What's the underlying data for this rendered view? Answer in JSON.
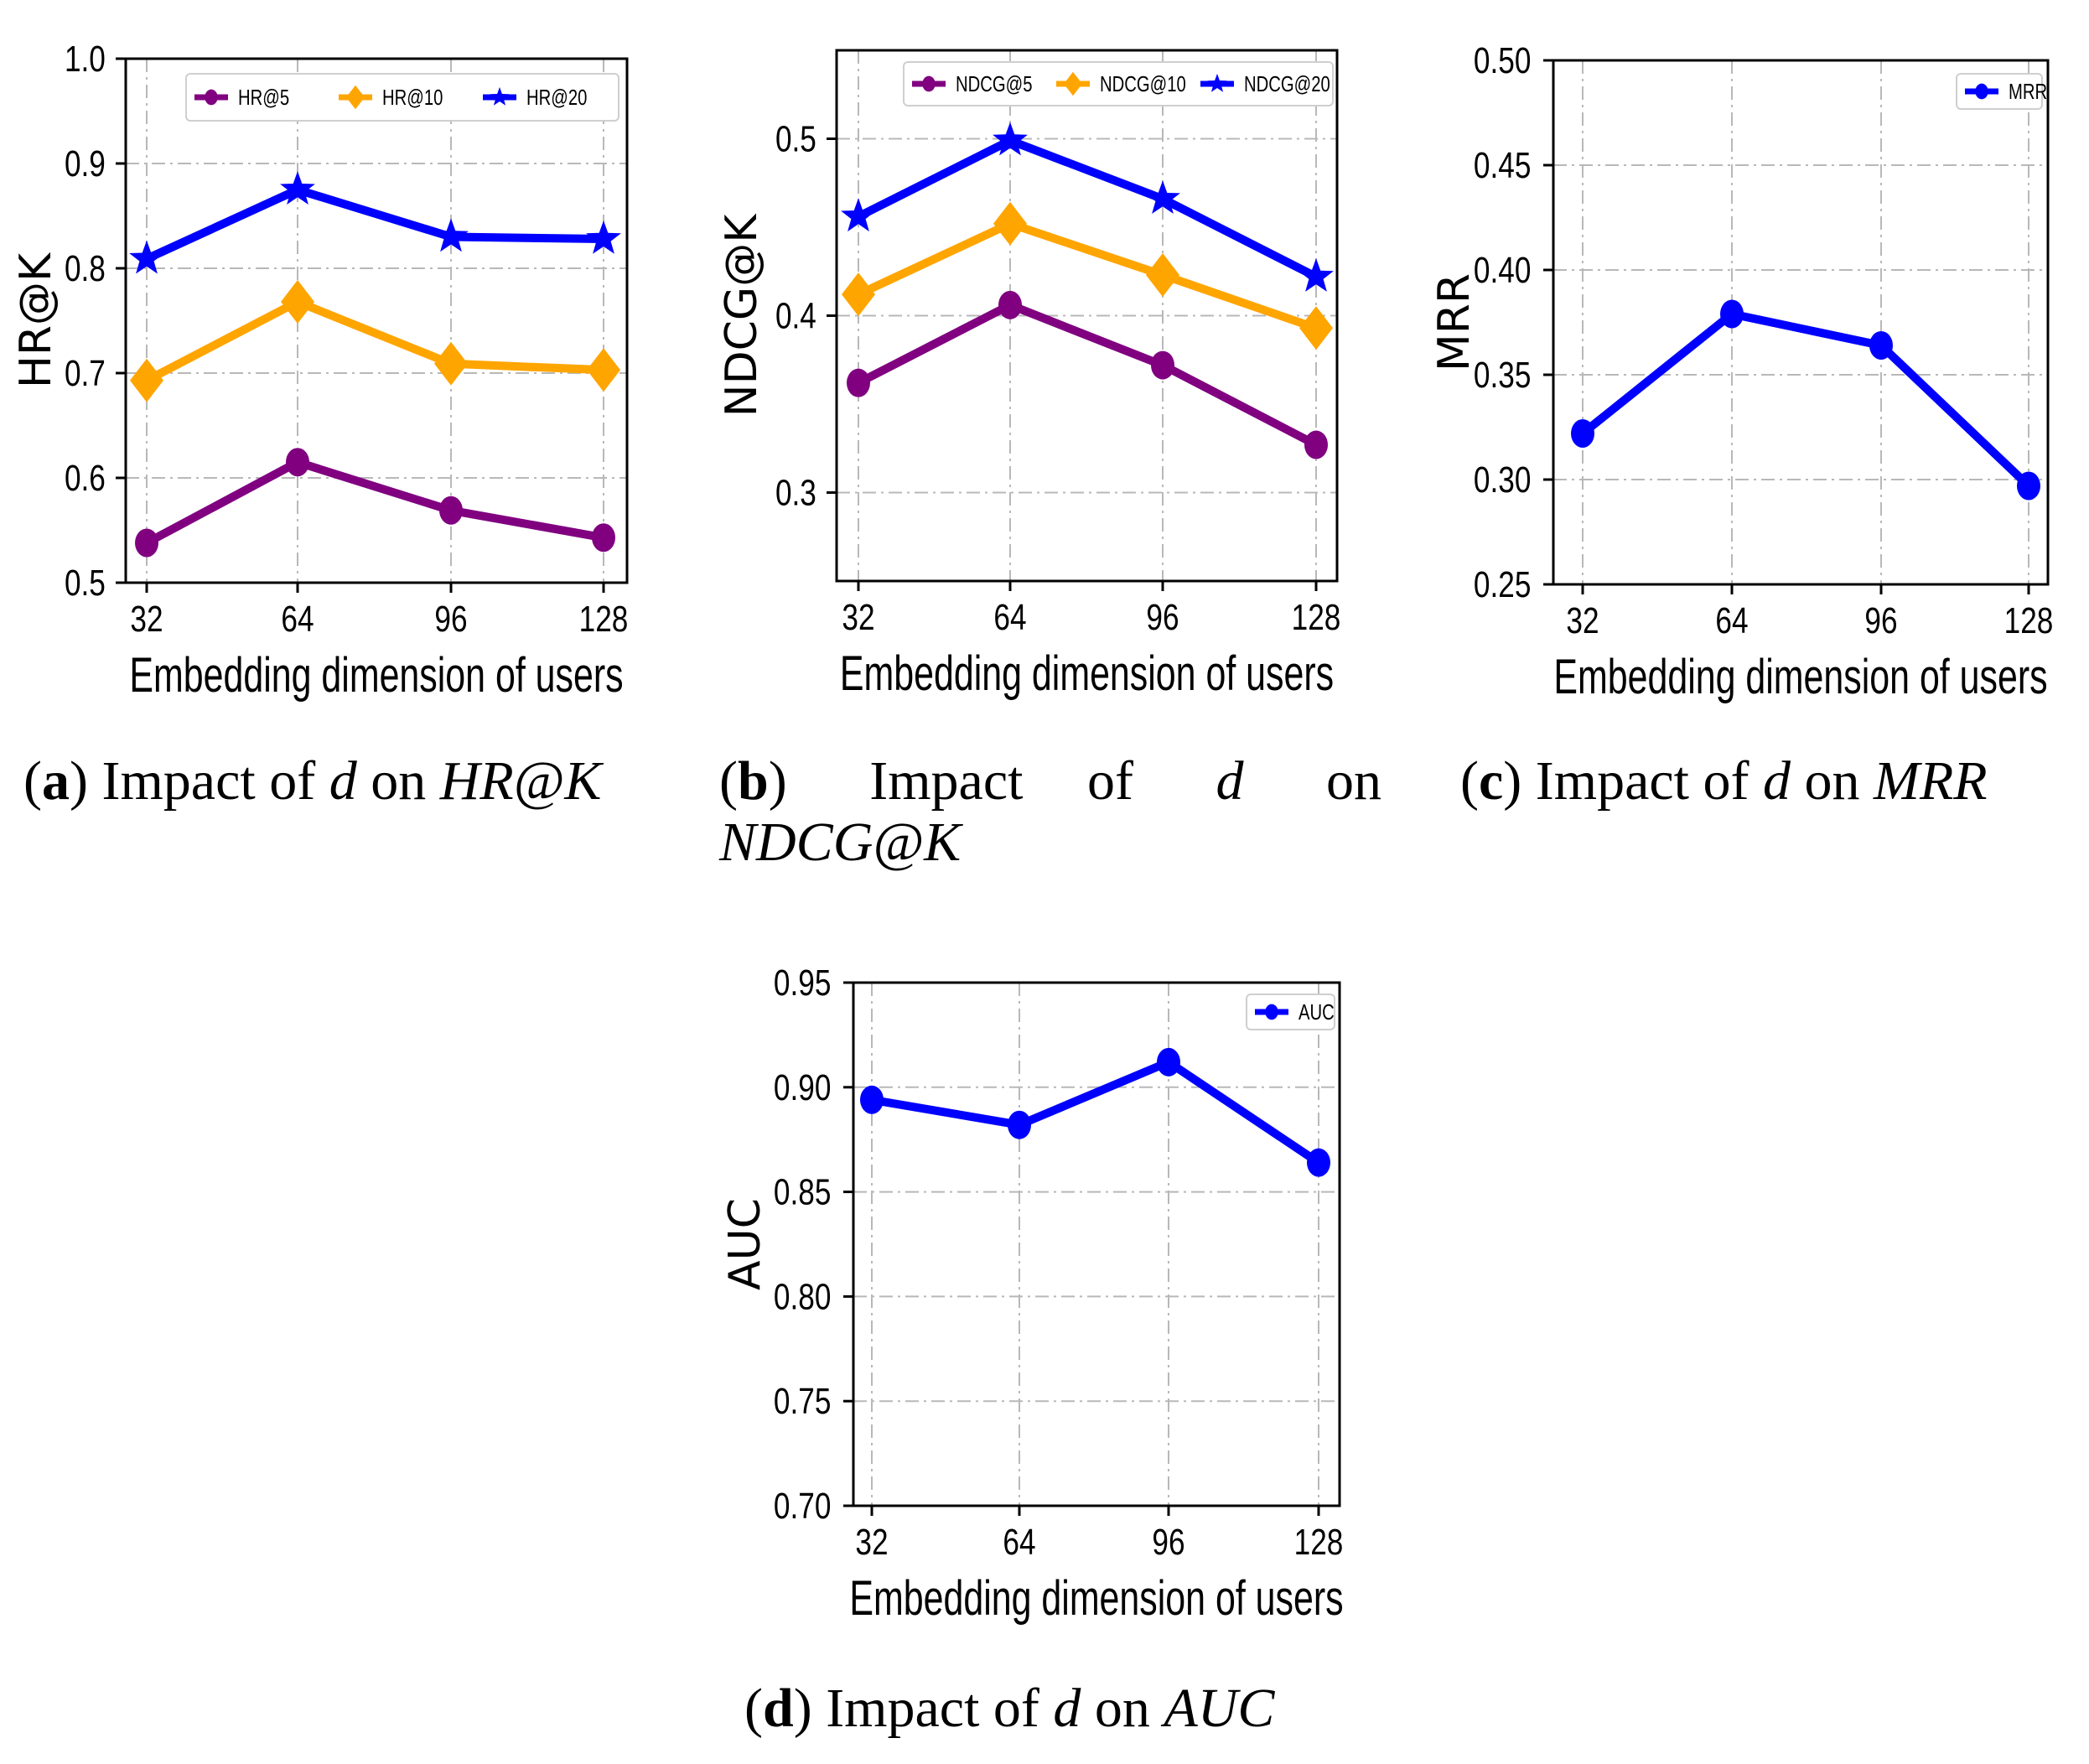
{
  "colors": {
    "purple": "#800080",
    "orange": "#FFA500",
    "blue": "#0000FF"
  },
  "chart_data": [
    {
      "id": "a",
      "type": "line",
      "categories": [
        "32",
        "64",
        "96",
        "128"
      ],
      "xlabel": "Embedding dimension of users",
      "ylabel": "HR@K",
      "ylim": [
        0.5,
        1.0
      ],
      "yticks": [
        0.5,
        0.6,
        0.7,
        0.8,
        0.9,
        1.0
      ],
      "ytick_labels": [
        "0.5",
        "0.6",
        "0.7",
        "0.8",
        "0.9",
        "1.0"
      ],
      "legend_position": "top-right",
      "series": [
        {
          "name": "HR@5",
          "values": [
            0.538,
            0.615,
            0.569,
            0.543
          ],
          "color": "#800080",
          "marker": "circle"
        },
        {
          "name": "HR@10",
          "values": [
            0.693,
            0.768,
            0.709,
            0.703
          ],
          "color": "#FFA500",
          "marker": "diamond"
        },
        {
          "name": "HR@20",
          "values": [
            0.809,
            0.875,
            0.83,
            0.828
          ],
          "color": "#0000FF",
          "marker": "star"
        }
      ]
    },
    {
      "id": "b",
      "type": "line",
      "categories": [
        "32",
        "64",
        "96",
        "128"
      ],
      "xlabel": "Embedding dimension of users",
      "ylabel": "NDCG@K",
      "ylim": [
        0.25,
        0.55
      ],
      "yticks": [
        0.3,
        0.4,
        0.5
      ],
      "ytick_labels": [
        "0.3",
        "0.4",
        "0.5"
      ],
      "legend_position": "top-right",
      "series": [
        {
          "name": "NDCG@5",
          "values": [
            0.362,
            0.406,
            0.372,
            0.327
          ],
          "color": "#800080",
          "marker": "circle"
        },
        {
          "name": "NDCG@10",
          "values": [
            0.412,
            0.452,
            0.423,
            0.393
          ],
          "color": "#FFA500",
          "marker": "diamond"
        },
        {
          "name": "NDCG@20",
          "values": [
            0.456,
            0.499,
            0.466,
            0.422
          ],
          "color": "#0000FF",
          "marker": "star"
        }
      ]
    },
    {
      "id": "c",
      "type": "line",
      "categories": [
        "32",
        "64",
        "96",
        "128"
      ],
      "xlabel": "Embedding dimension of users",
      "ylabel": "MRR",
      "ylim": [
        0.25,
        0.5
      ],
      "yticks": [
        0.25,
        0.3,
        0.35,
        0.4,
        0.45,
        0.5
      ],
      "ytick_labels": [
        "0.25",
        "0.30",
        "0.35",
        "0.40",
        "0.45",
        "0.50"
      ],
      "legend_position": "top-right",
      "series": [
        {
          "name": "MRR",
          "values": [
            0.322,
            0.379,
            0.364,
            0.297
          ],
          "color": "#0000FF",
          "marker": "circle"
        }
      ]
    },
    {
      "id": "d",
      "type": "line",
      "categories": [
        "32",
        "64",
        "96",
        "128"
      ],
      "xlabel": "Embedding dimension of users",
      "ylabel": "AUC",
      "ylim": [
        0.7,
        0.95
      ],
      "yticks": [
        0.7,
        0.75,
        0.8,
        0.85,
        0.9,
        0.95
      ],
      "ytick_labels": [
        "0.70",
        "0.75",
        "0.80",
        "0.85",
        "0.90",
        "0.95"
      ],
      "legend_position": "top-right",
      "series": [
        {
          "name": "AUC",
          "values": [
            0.894,
            0.882,
            0.912,
            0.864
          ],
          "color": "#0000FF",
          "marker": "circle"
        }
      ]
    }
  ],
  "captions": {
    "a": {
      "letter": "a",
      "text": "Impact of",
      "var": "d",
      "on": "on",
      "metric": "HR@K"
    },
    "b": {
      "letter": "b",
      "text": "Impact of",
      "var": "d",
      "on": "on",
      "metric": "NDCG@K"
    },
    "c": {
      "letter": "c",
      "text": "Impact of",
      "var": "d",
      "on": "on",
      "metric": "MRR"
    },
    "d": {
      "letter": "d",
      "text": "Impact of",
      "var": "d",
      "on": "on",
      "metric": "AUC"
    }
  }
}
